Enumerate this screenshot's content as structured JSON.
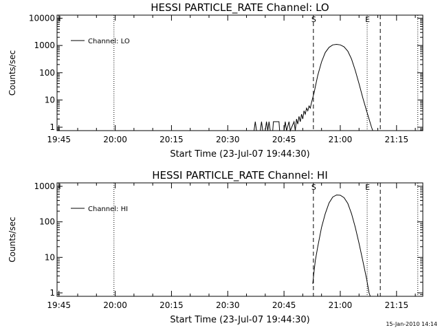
{
  "footer": {
    "timestamp": "15-Jan-2010 14:14"
  },
  "chart_data": [
    {
      "type": "line",
      "title": "HESSI PARTICLE_RATE Channel: LO",
      "xlabel": "Start Time (23-Jul-07 19:44:30)",
      "ylabel": "Counts/sec",
      "yscale": "log",
      "xlim": [
        "19:44:30",
        "21:22:00"
      ],
      "ylim": [
        0.75,
        13000
      ],
      "x_tick_labels": [
        "19:45",
        "20:00",
        "20:15",
        "20:30",
        "20:45",
        "21:00",
        "21:15"
      ],
      "y_tick_labels": [
        "1",
        "10",
        "100",
        "1000",
        "10000"
      ],
      "y_tick_values": [
        1,
        10,
        100,
        1000,
        10000
      ],
      "legend": {
        "placement": "top-left",
        "entries": [
          "Channel: LO"
        ]
      },
      "markers": [
        {
          "time": "19:59:40",
          "style": "dotted",
          "label": ""
        },
        {
          "time": "20:52:50",
          "style": "dashed",
          "label": "S"
        },
        {
          "time": "21:07:10",
          "style": "dotted",
          "label": "E"
        },
        {
          "time": "21:10:40",
          "style": "dashed",
          "label": ""
        },
        {
          "time": "21:20:40",
          "style": "dotted",
          "label": ""
        }
      ],
      "series": [
        {
          "name": "Channel: LO",
          "points": [
            [
              "20:37:00",
              0.7
            ],
            [
              "20:37:20",
              1.6
            ],
            [
              "20:37:40",
              0.7
            ],
            [
              "20:38:40",
              0.7
            ],
            [
              "20:39:00",
              1.6
            ],
            [
              "20:39:20",
              0.7
            ],
            [
              "20:40:00",
              0.7
            ],
            [
              "20:40:20",
              1.6
            ],
            [
              "20:40:40",
              0.7
            ],
            [
              "20:41:00",
              1.6
            ],
            [
              "20:41:20",
              0.7
            ],
            [
              "20:42:00",
              0.7
            ],
            [
              "20:42:10",
              1.6
            ],
            [
              "20:43:40",
              1.6
            ],
            [
              "20:43:50",
              0.7
            ],
            [
              "20:45:00",
              0.7
            ],
            [
              "20:45:20",
              1.6
            ],
            [
              "20:45:40",
              0.7
            ],
            [
              "20:46:20",
              1.6
            ],
            [
              "20:46:40",
              0.7
            ],
            [
              "20:47:40",
              1.6
            ],
            [
              "20:48:00",
              0.7
            ],
            [
              "20:48:20",
              2.0
            ],
            [
              "20:48:40",
              1.3
            ],
            [
              "20:49:00",
              2.5
            ],
            [
              "20:49:20",
              1.6
            ],
            [
              "20:49:40",
              3.0
            ],
            [
              "20:50:00",
              2.0
            ],
            [
              "20:50:20",
              4.0
            ],
            [
              "20:50:40",
              3.0
            ],
            [
              "20:51:00",
              5.0
            ],
            [
              "20:51:20",
              4.0
            ],
            [
              "20:51:40",
              6.0
            ],
            [
              "20:52:00",
              5.0
            ],
            [
              "20:52:20",
              8.0
            ],
            [
              "20:52:40",
              12
            ],
            [
              "20:53:00",
              18
            ],
            [
              "20:53:20",
              30
            ],
            [
              "20:54:00",
              80
            ],
            [
              "20:55:00",
              250
            ],
            [
              "20:56:00",
              550
            ],
            [
              "20:57:00",
              850
            ],
            [
              "20:58:00",
              1050
            ],
            [
              "20:59:00",
              1100
            ],
            [
              "21:00:00",
              1050
            ],
            [
              "21:01:00",
              900
            ],
            [
              "21:02:00",
              620
            ],
            [
              "21:03:00",
              320
            ],
            [
              "21:04:00",
              120
            ],
            [
              "21:05:00",
              40
            ],
            [
              "21:06:00",
              12
            ],
            [
              "21:07:00",
              4
            ],
            [
              "21:07:40",
              2
            ],
            [
              "21:08:20",
              1.0
            ],
            [
              "21:08:40",
              0.7
            ]
          ]
        }
      ]
    },
    {
      "type": "line",
      "title": "HESSI PARTICLE_RATE Channel: HI",
      "xlabel": "Start Time (23-Jul-07 19:44:30)",
      "ylabel": "Counts/sec",
      "yscale": "log",
      "xlim": [
        "19:44:30",
        "21:22:00"
      ],
      "ylim": [
        0.8,
        1250
      ],
      "x_tick_labels": [
        "19:45",
        "20:00",
        "20:15",
        "20:30",
        "20:45",
        "21:00",
        "21:15"
      ],
      "y_tick_labels": [
        "1",
        "10",
        "100",
        "1000"
      ],
      "y_tick_values": [
        1,
        10,
        100,
        1000
      ],
      "legend": {
        "placement": "top-left",
        "entries": [
          "Channel: HI"
        ]
      },
      "markers": [
        {
          "time": "19:59:40",
          "style": "dotted",
          "label": ""
        },
        {
          "time": "20:52:50",
          "style": "dashed",
          "label": "S"
        },
        {
          "time": "21:07:10",
          "style": "dotted",
          "label": "E"
        },
        {
          "time": "21:10:40",
          "style": "dashed",
          "label": ""
        },
        {
          "time": "21:20:40",
          "style": "dotted",
          "label": ""
        }
      ],
      "series": [
        {
          "name": "Channel: HI",
          "points": [
            [
              "20:52:40",
              1.8
            ],
            [
              "20:53:00",
              4
            ],
            [
              "20:53:20",
              8
            ],
            [
              "20:54:00",
              20
            ],
            [
              "20:55:00",
              70
            ],
            [
              "20:56:00",
              170
            ],
            [
              "20:57:00",
              340
            ],
            [
              "20:58:00",
              500
            ],
            [
              "20:59:00",
              570
            ],
            [
              "21:00:00",
              560
            ],
            [
              "21:01:00",
              480
            ],
            [
              "21:02:00",
              330
            ],
            [
              "21:03:00",
              170
            ],
            [
              "21:04:00",
              70
            ],
            [
              "21:05:00",
              25
            ],
            [
              "21:06:00",
              8
            ],
            [
              "21:07:00",
              2.5
            ],
            [
              "21:07:40",
              1.0
            ],
            [
              "21:08:00",
              0.8
            ]
          ]
        }
      ]
    }
  ]
}
